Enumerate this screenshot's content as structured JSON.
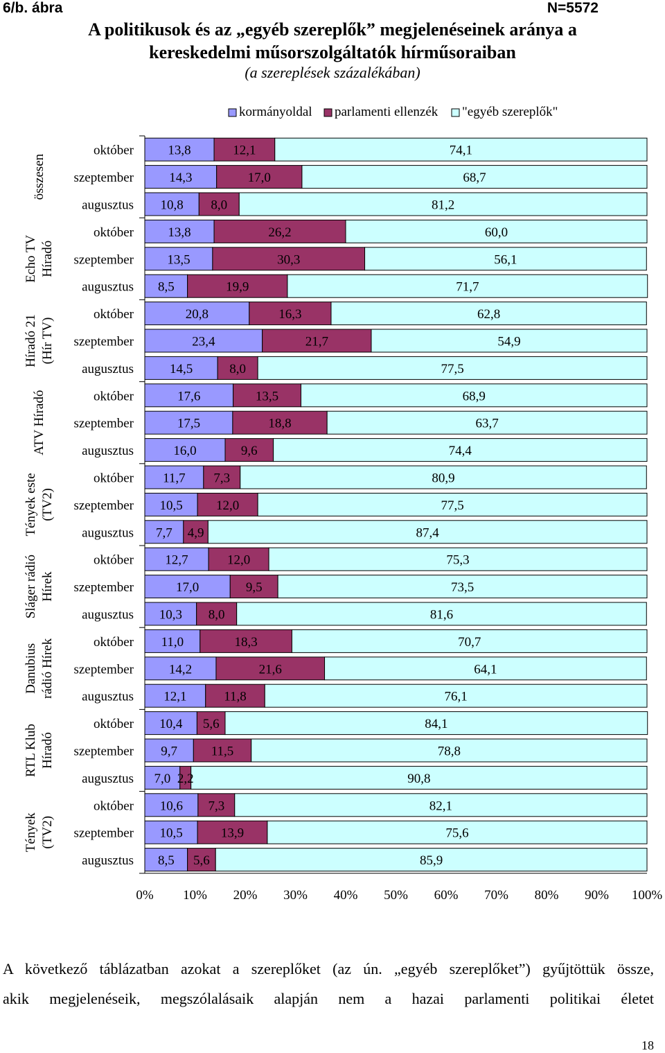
{
  "header": {
    "figure_label": "6/b. ábra",
    "n_label": "N=5572"
  },
  "chart_data": {
    "type": "bar",
    "orientation": "horizontal-stacked-100",
    "title": "A politikusok és az „egyéb szereplők” megjelenéseinek aránya a kereskedelmi műsorszolgáltatók hírműsoraiban",
    "title_line1": "A politikusok és az „egyéb szereplők” megjelenéseinek aránya a",
    "title_line2": "kereskedelmi műsorszolgáltatók hírműsoraiban",
    "subtitle": "(a szereplések százalékában)",
    "xlim": [
      0,
      100
    ],
    "x_ticks": [
      "0%",
      "10%",
      "20%",
      "30%",
      "40%",
      "50%",
      "60%",
      "70%",
      "80%",
      "90%",
      "100%"
    ],
    "legend": {
      "position": "top-right",
      "entries": [
        {
          "name": "kormányoldal",
          "color": "#9999ff"
        },
        {
          "name": "parlamenti ellenzék",
          "color": "#993366"
        },
        {
          "name": "\"egyéb szereplők\"",
          "color": "#ccffff"
        }
      ]
    },
    "groups": [
      {
        "line1": "összesen",
        "line2": "",
        "rows": [
          {
            "month": "október",
            "values": [
              13.8,
              12.1,
              74.1
            ],
            "labels": [
              "13,8",
              "12,1",
              "74,1"
            ]
          },
          {
            "month": "szeptember",
            "values": [
              14.3,
              17.0,
              68.7
            ],
            "labels": [
              "14,3",
              "17,0",
              "68,7"
            ]
          },
          {
            "month": "augusztus",
            "values": [
              10.8,
              8.0,
              81.2
            ],
            "labels": [
              "10,8",
              "8,0",
              "81,2"
            ]
          }
        ]
      },
      {
        "line1": "Echo TV",
        "line2": "Híradó",
        "rows": [
          {
            "month": "október",
            "values": [
              13.8,
              26.2,
              60.0
            ],
            "labels": [
              "13,8",
              "26,2",
              "60,0"
            ]
          },
          {
            "month": "szeptember",
            "values": [
              13.5,
              30.3,
              56.1
            ],
            "labels": [
              "13,5",
              "30,3",
              "56,1"
            ]
          },
          {
            "month": "augusztus",
            "values": [
              8.5,
              19.9,
              71.7
            ],
            "labels": [
              "8,5",
              "19,9",
              "71,7"
            ]
          }
        ]
      },
      {
        "line1": "Híradó 21",
        "line2": "(Hír TV)",
        "rows": [
          {
            "month": "október",
            "values": [
              20.8,
              16.3,
              62.8
            ],
            "labels": [
              "20,8",
              "16,3",
              "62,8"
            ]
          },
          {
            "month": "szeptember",
            "values": [
              23.4,
              21.7,
              54.9
            ],
            "labels": [
              "23,4",
              "21,7",
              "54,9"
            ]
          },
          {
            "month": "augusztus",
            "values": [
              14.5,
              8.0,
              77.5
            ],
            "labels": [
              "14,5",
              "8,0",
              "77,5"
            ]
          }
        ]
      },
      {
        "line1": "ATV Híradó",
        "line2": "",
        "rows": [
          {
            "month": "október",
            "values": [
              17.6,
              13.5,
              68.9
            ],
            "labels": [
              "17,6",
              "13,5",
              "68,9"
            ]
          },
          {
            "month": "szeptember",
            "values": [
              17.5,
              18.8,
              63.7
            ],
            "labels": [
              "17,5",
              "18,8",
              "63,7"
            ]
          },
          {
            "month": "augusztus",
            "values": [
              16.0,
              9.6,
              74.4
            ],
            "labels": [
              "16,0",
              "9,6",
              "74,4"
            ]
          }
        ]
      },
      {
        "line1": "Tények este",
        "line2": "(TV2)",
        "rows": [
          {
            "month": "október",
            "values": [
              11.7,
              7.3,
              80.9
            ],
            "labels": [
              "11,7",
              "7,3",
              "80,9"
            ]
          },
          {
            "month": "szeptember",
            "values": [
              10.5,
              12.0,
              77.5
            ],
            "labels": [
              "10,5",
              "12,0",
              "77,5"
            ]
          },
          {
            "month": "augusztus",
            "values": [
              7.7,
              4.9,
              87.4
            ],
            "labels": [
              "7,7",
              "4,9",
              "87,4"
            ]
          }
        ]
      },
      {
        "line1": "Sláger rádió",
        "line2": "Hírek",
        "rows": [
          {
            "month": "október",
            "values": [
              12.7,
              12.0,
              75.3
            ],
            "labels": [
              "12,7",
              "12,0",
              "75,3"
            ]
          },
          {
            "month": "szeptember",
            "values": [
              17.0,
              9.5,
              73.5
            ],
            "labels": [
              "17,0",
              "9,5",
              "73,5"
            ]
          },
          {
            "month": "augusztus",
            "values": [
              10.3,
              8.0,
              81.6
            ],
            "labels": [
              "10,3",
              "8,0",
              "81,6"
            ]
          }
        ]
      },
      {
        "line1": "Danubius",
        "line2": "rádió Hírek",
        "rows": [
          {
            "month": "október",
            "values": [
              11.0,
              18.3,
              70.7
            ],
            "labels": [
              "11,0",
              "18,3",
              "70,7"
            ]
          },
          {
            "month": "szeptember",
            "values": [
              14.2,
              21.6,
              64.1
            ],
            "labels": [
              "14,2",
              "21,6",
              "64,1"
            ]
          },
          {
            "month": "augusztus",
            "values": [
              12.1,
              11.8,
              76.1
            ],
            "labels": [
              "12,1",
              "11,8",
              "76,1"
            ]
          }
        ]
      },
      {
        "line1": "RTL Klub",
        "line2": "Híradó",
        "rows": [
          {
            "month": "október",
            "values": [
              10.4,
              5.6,
              84.1
            ],
            "labels": [
              "10,4",
              "5,6",
              "84,1"
            ]
          },
          {
            "month": "szeptember",
            "values": [
              9.7,
              11.5,
              78.8
            ],
            "labels": [
              "9,7",
              "11,5",
              "78,8"
            ]
          },
          {
            "month": "augusztus",
            "values": [
              7.0,
              2.2,
              90.8
            ],
            "labels": [
              "7,0",
              "2,2",
              "90,8"
            ]
          }
        ]
      },
      {
        "line1": "Tények",
        "line2": "(TV2)",
        "rows": [
          {
            "month": "október",
            "values": [
              10.6,
              7.3,
              82.1
            ],
            "labels": [
              "10,6",
              "7,3",
              "82,1"
            ]
          },
          {
            "month": "szeptember",
            "values": [
              10.5,
              13.9,
              75.6
            ],
            "labels": [
              "10,5",
              "13,9",
              "75,6"
            ]
          },
          {
            "month": "augusztus",
            "values": [
              8.5,
              5.6,
              85.9
            ],
            "labels": [
              "8,5",
              "5,6",
              "85,9"
            ]
          }
        ]
      }
    ]
  },
  "body_text": {
    "line1": "A következő táblázatban azokat a szereplőket (az ún. „egyéb szereplőket”) gyűjtöttük össze,",
    "line2": "akik megjelenéseik, megszólalásaik alapján nem a hazai parlamenti politikai életet"
  },
  "page_number": "18"
}
